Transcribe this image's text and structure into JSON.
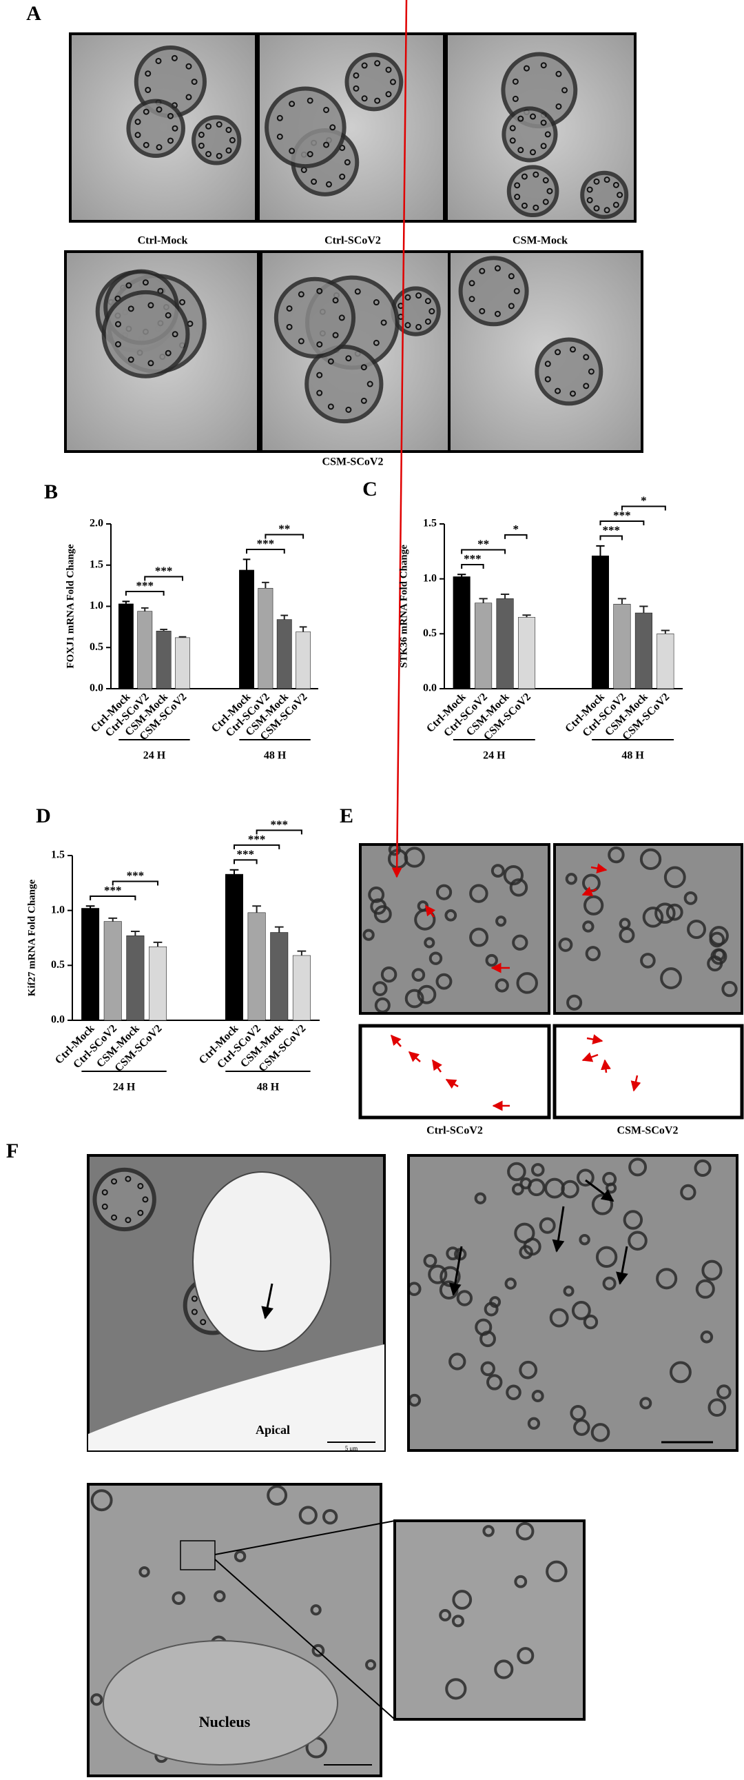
{
  "panel_labels": {
    "a": "A",
    "b": "B",
    "c": "C",
    "d": "D",
    "e": "E",
    "f": "F"
  },
  "panel_a": {
    "captions": [
      "Ctrl-Mock",
      "Ctrl-SCoV2",
      "CSM-Mock",
      "CSM-SCoV2"
    ]
  },
  "panel_e": {
    "captions": [
      "Ctrl-SCoV2",
      "CSM-SCoV2"
    ]
  },
  "panel_f": {
    "labels": {
      "apical": "Apical",
      "nucleus": "Nucleus",
      "scale": "5 μm"
    }
  },
  "chart_data": [
    {
      "type": "bar",
      "y_label": "FOXJ1 mRNA Fold Change",
      "categories": [
        "24 H",
        "48 H"
      ],
      "series": [
        {
          "name": "Ctrl-Mock",
          "color": "#000000",
          "values": [
            1.03,
            1.44
          ],
          "errors": [
            0.03,
            0.13
          ]
        },
        {
          "name": "Ctrl-SCoV2",
          "color": "#a6a6a6",
          "values": [
            0.94,
            1.22
          ],
          "errors": [
            0.04,
            0.07
          ]
        },
        {
          "name": "CSM-Mock",
          "color": "#5f5f5f",
          "values": [
            0.7,
            0.84
          ],
          "errors": [
            0.02,
            0.05
          ]
        },
        {
          "name": "CSM-SCoV2",
          "color": "#d9d9d9",
          "values": [
            0.62,
            0.69
          ],
          "errors": [
            0.01,
            0.06
          ]
        }
      ],
      "ylim": [
        0,
        2
      ],
      "yticks": [
        {
          "value": 0,
          "label": "0.0"
        },
        0.5,
        {
          "value": 1,
          "label": "1.0"
        },
        1.5,
        {
          "value": 2,
          "label": "2.0"
        }
      ],
      "annotations": [
        {
          "group": "24 H",
          "between": [
            "Ctrl-Mock",
            "CSM-Mock"
          ],
          "text": "***"
        },
        {
          "group": "24 H",
          "between": [
            "Ctrl-SCoV2",
            "CSM-SCoV2"
          ],
          "text": "***"
        },
        {
          "group": "48 H",
          "between": [
            "Ctrl-Mock",
            "CSM-Mock"
          ],
          "text": "***"
        },
        {
          "group": "48 H",
          "between": [
            "Ctrl-SCoV2",
            "CSM-SCoV2"
          ],
          "text": "**"
        }
      ]
    },
    {
      "type": "bar",
      "y_label": "STK36 mRNA Fold Change",
      "categories": [
        "24 H",
        "48 H"
      ],
      "series": [
        {
          "name": "Ctrl-Mock",
          "color": "#000000",
          "values": [
            1.02,
            1.21
          ],
          "errors": [
            0.02,
            0.09
          ]
        },
        {
          "name": "Ctrl-SCoV2",
          "color": "#a6a6a6",
          "values": [
            0.78,
            0.77
          ],
          "errors": [
            0.04,
            0.05
          ]
        },
        {
          "name": "CSM-Mock",
          "color": "#5f5f5f",
          "values": [
            0.82,
            0.69
          ],
          "errors": [
            0.04,
            0.06
          ]
        },
        {
          "name": "CSM-SCoV2",
          "color": "#d9d9d9",
          "values": [
            0.65,
            0.5
          ],
          "errors": [
            0.02,
            0.03
          ]
        }
      ],
      "ylim": [
        0,
        1.5
      ],
      "yticks": [
        {
          "value": 0,
          "label": "0.0"
        },
        0.5,
        {
          "value": 1,
          "label": "1.0"
        },
        1.5
      ],
      "annotations": [
        {
          "group": "24 H",
          "between": [
            "Ctrl-Mock",
            "Ctrl-SCoV2"
          ],
          "text": "***"
        },
        {
          "group": "24 H",
          "between": [
            "Ctrl-Mock",
            "CSM-Mock"
          ],
          "text": "**"
        },
        {
          "group": "24 H",
          "between": [
            "CSM-Mock",
            "CSM-SCoV2"
          ],
          "text": "*"
        },
        {
          "group": "48 H",
          "between": [
            "Ctrl-Mock",
            "Ctrl-SCoV2"
          ],
          "text": "***"
        },
        {
          "group": "48 H",
          "between": [
            "Ctrl-Mock",
            "CSM-Mock"
          ],
          "text": "***"
        },
        {
          "group": "48 H",
          "between": [
            "Ctrl-SCoV2",
            "CSM-SCoV2"
          ],
          "text": "*"
        }
      ]
    },
    {
      "type": "bar",
      "y_label": "Kif27 mRNA Fold Change",
      "categories": [
        "24 H",
        "48 H"
      ],
      "series": [
        {
          "name": "Ctrl-Mock",
          "color": "#000000",
          "values": [
            1.02,
            1.33
          ],
          "errors": [
            0.02,
            0.04
          ]
        },
        {
          "name": "Ctrl-SCoV2",
          "color": "#a6a6a6",
          "values": [
            0.9,
            0.98
          ],
          "errors": [
            0.03,
            0.06
          ]
        },
        {
          "name": "CSM-Mock",
          "color": "#5f5f5f",
          "values": [
            0.77,
            0.8
          ],
          "errors": [
            0.04,
            0.05
          ]
        },
        {
          "name": "CSM-SCoV2",
          "color": "#d9d9d9",
          "values": [
            0.67,
            0.59
          ],
          "errors": [
            0.04,
            0.04
          ]
        }
      ],
      "ylim": [
        0,
        1.5
      ],
      "yticks": [
        {
          "value": 0,
          "label": "0.0"
        },
        0.5,
        {
          "value": 1,
          "label": "1.0"
        },
        1.5
      ],
      "annotations": [
        {
          "group": "24 H",
          "between": [
            "Ctrl-Mock",
            "CSM-Mock"
          ],
          "text": "***"
        },
        {
          "group": "24 H",
          "between": [
            "Ctrl-SCoV2",
            "CSM-SCoV2"
          ],
          "text": "***"
        },
        {
          "group": "48 H",
          "between": [
            "Ctrl-Mock",
            "Ctrl-SCoV2"
          ],
          "text": "***"
        },
        {
          "group": "48 H",
          "between": [
            "Ctrl-Mock",
            "CSM-Mock"
          ],
          "text": "***"
        },
        {
          "group": "48 H",
          "between": [
            "Ctrl-SCoV2",
            "CSM-SCoV2"
          ],
          "text": "***"
        }
      ]
    }
  ]
}
